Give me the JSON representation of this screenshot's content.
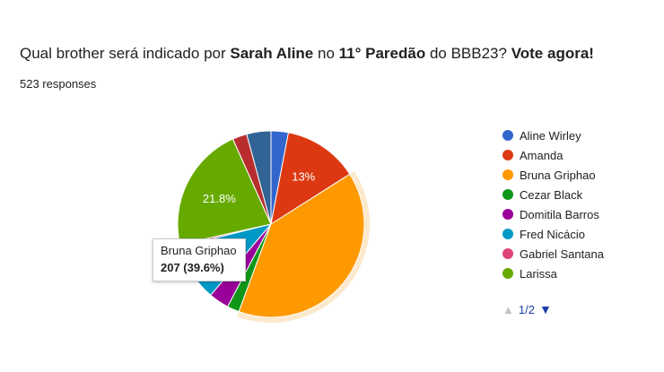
{
  "header": {
    "title_parts": [
      {
        "text": "Qual brother será indicado por ",
        "bold": false
      },
      {
        "text": "Sarah Aline",
        "bold": true
      },
      {
        "text": " no ",
        "bold": false
      },
      {
        "text": "11° Paredão",
        "bold": true
      },
      {
        "text": " do BBB23? ",
        "bold": false
      },
      {
        "text": "Vote agora!",
        "bold": true
      }
    ],
    "responses": "523 responses"
  },
  "tooltip": {
    "name": "Bruna Griphao",
    "value": "207 (39.6%)"
  },
  "pager": {
    "up_icon": "triangle-up-icon",
    "label": "1/2",
    "down_icon": "triangle-down-icon"
  },
  "chart_data": {
    "type": "pie",
    "total": 523,
    "highlighted": "Bruna Griphao",
    "slices": [
      {
        "label": "Aline Wirley",
        "value": 3.0,
        "color": "#3366cc"
      },
      {
        "label": "Amanda",
        "value": 13.0,
        "color": "#dc3912",
        "data_label": "13%"
      },
      {
        "label": "Bruna Griphao",
        "value": 39.6,
        "color": "#ff9900"
      },
      {
        "label": "Cezar Black",
        "value": 2.1,
        "color": "#109618"
      },
      {
        "label": "Domitila Barros",
        "value": 3.5,
        "color": "#990099"
      },
      {
        "label": "Fred Nicácio",
        "value": 9.9,
        "color": "#0099c6",
        "data_label": "9.9%"
      },
      {
        "label": "Gabriel Santana",
        "value": 0.4,
        "color": "#dd4477"
      },
      {
        "label": "Larissa",
        "value": 21.8,
        "color": "#66aa00",
        "data_label": "21.8%"
      },
      {
        "label": "",
        "value": 2.5,
        "color": "#b82e2e"
      },
      {
        "label": "",
        "value": 4.2,
        "color": "#316395"
      }
    ]
  }
}
